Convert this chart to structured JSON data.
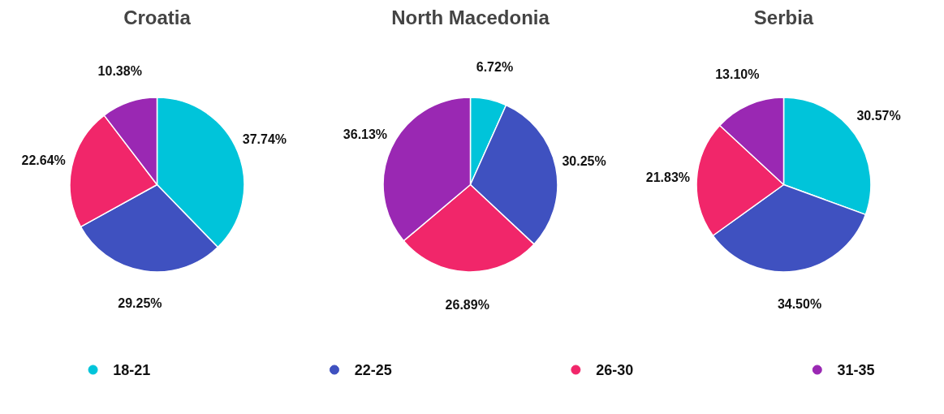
{
  "chart_data": [
    {
      "type": "pie",
      "title": "Croatia",
      "categories": [
        "18-21",
        "22-25",
        "26-30",
        "31-35"
      ],
      "values": [
        37.74,
        29.25,
        22.64,
        10.38
      ],
      "value_labels": [
        "37.74%",
        "29.25%",
        "22.64%",
        "10.38%"
      ],
      "colors": [
        "#00c4da",
        "#3f51c0",
        "#f1266a",
        "#9a28b3"
      ],
      "legend": "bottom"
    },
    {
      "type": "pie",
      "title": "North Macedonia",
      "categories": [
        null,
        null,
        null,
        null
      ],
      "values": [
        6.72,
        30.25,
        26.89,
        36.13
      ],
      "value_labels": [
        "6.72%",
        "30.25%",
        "26.89%",
        "36.13%"
      ],
      "colors": [
        "#00c4da",
        "#3f51c0",
        "#f1266a",
        "#9a28b3"
      ]
    },
    {
      "type": "pie",
      "title": "Serbia",
      "categories": [
        null,
        null,
        null,
        null
      ],
      "values": [
        30.57,
        34.5,
        21.83,
        13.1
      ],
      "value_labels": [
        "30.57%",
        "34.50%",
        "21.83%",
        "13.10%"
      ],
      "colors": [
        "#00c4da",
        "#3f51c0",
        "#f1266a",
        "#9a28b3"
      ]
    }
  ]
}
